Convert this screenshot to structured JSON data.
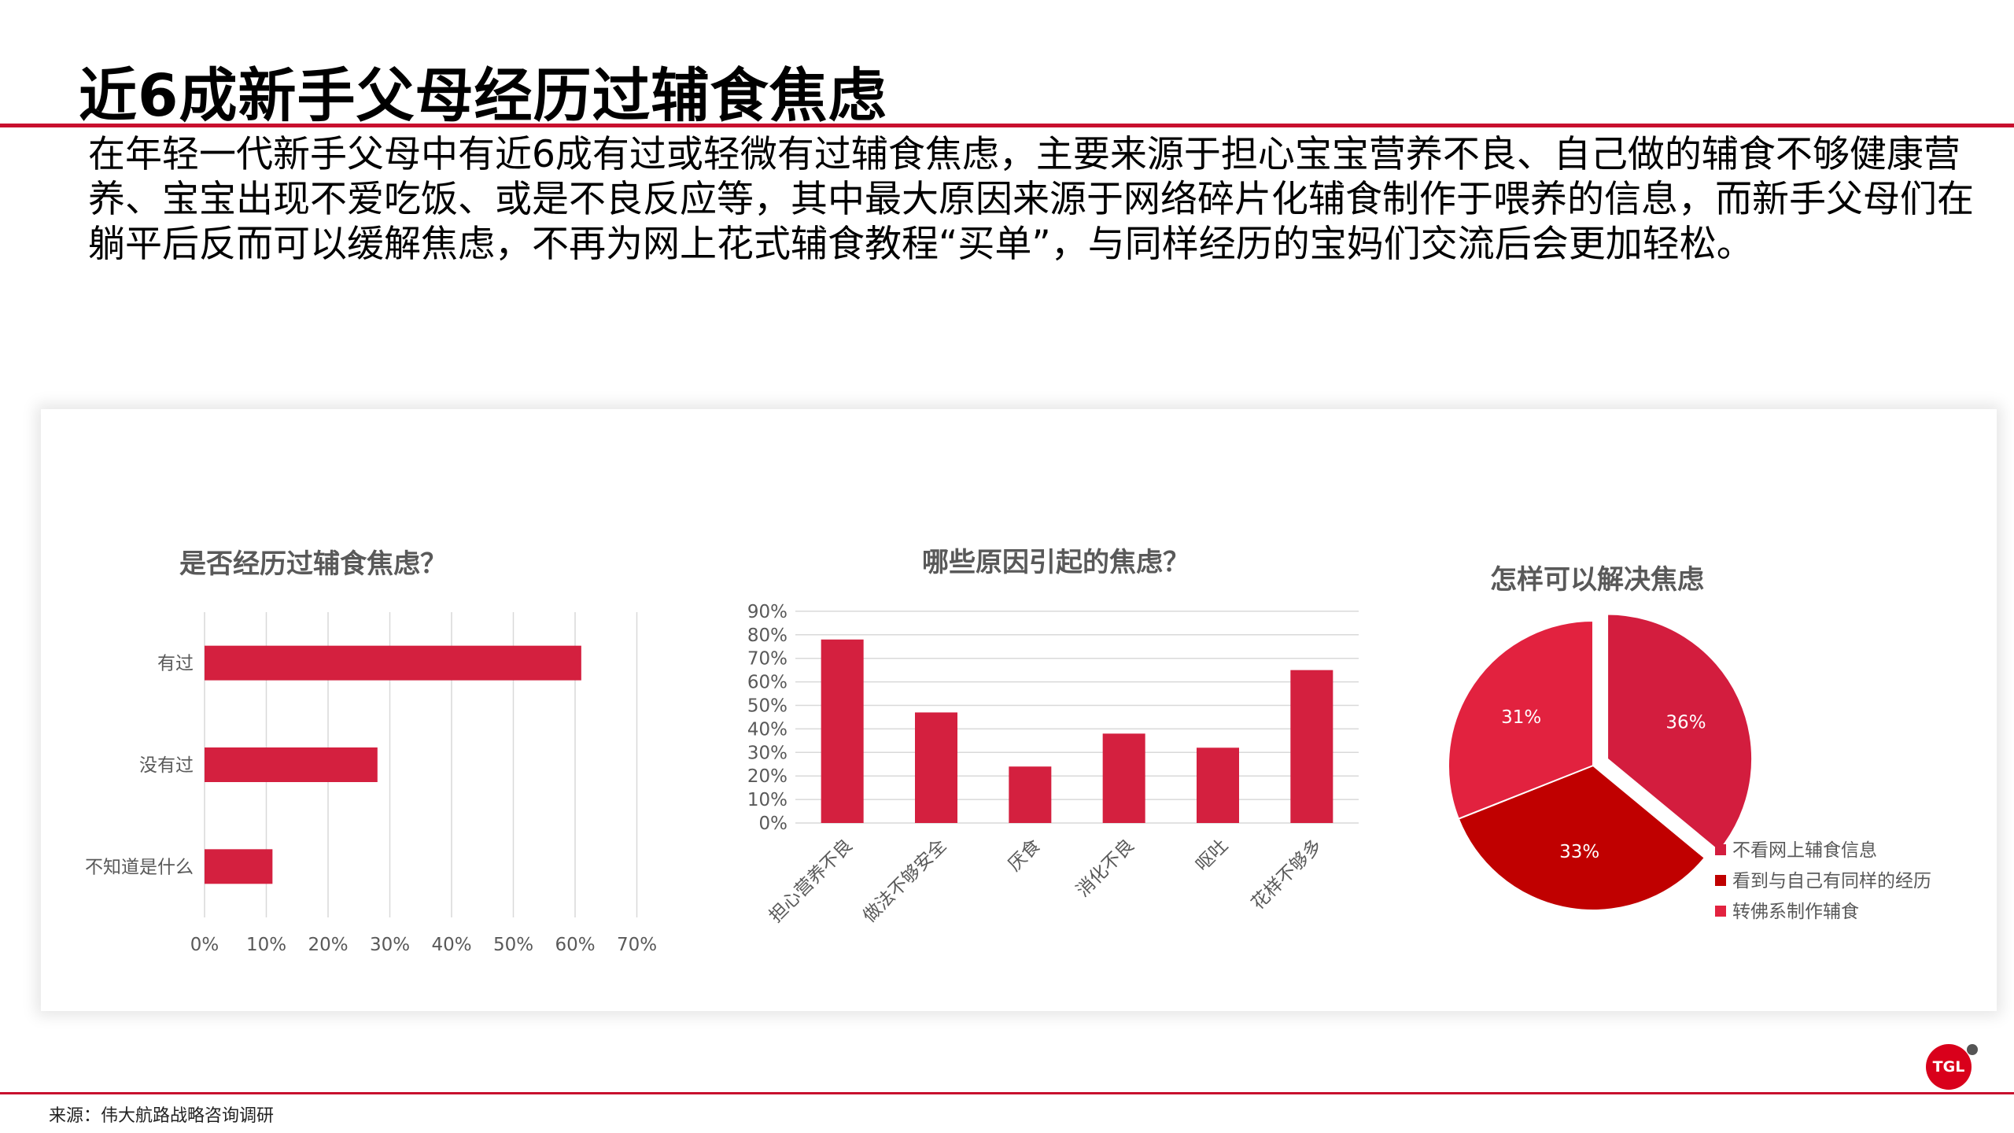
{
  "page": {
    "title": "近6成新手父母经历过辅食焦虑",
    "summary": "在年轻一代新手父母中有近6成有过或轻微有过辅食焦虑，主要来源于担心宝宝营养不良、自己做的辅食不够健康营养、宝宝出现不爱吃饭、或是不良反应等，其中最大原因来源于网络碎片化辅食制作于喂养的信息，而新手父母们在躺平后反而可以缓解焦虑，不再为网上花式辅食教程“买单”，与同样经历的宝妈们交流后会更加轻松。",
    "source": "来源：伟大航路战略咨询调研",
    "logo_text": "TGL"
  },
  "colors": {
    "bar": "#d4203f",
    "grid": "#d9d9d9",
    "axis_text": "#595959",
    "title_text": "#595959",
    "pie": [
      "#d31d3e",
      "#c00000",
      "#e2223f"
    ]
  },
  "chart_data": [
    {
      "type": "bar",
      "orientation": "horizontal",
      "title": "是否经历过辅食焦虑？",
      "categories": [
        "有过",
        "没有过",
        "不知道是什么"
      ],
      "values": [
        0.61,
        0.28,
        0.11
      ],
      "xlim": [
        0,
        0.7
      ],
      "x_ticks": [
        "0%",
        "10%",
        "20%",
        "30%",
        "40%",
        "50%",
        "60%",
        "70%"
      ],
      "grid": "vertical"
    },
    {
      "type": "bar",
      "orientation": "vertical",
      "title": "哪些原因引起的焦虑？",
      "categories": [
        "担心营养不良",
        "做法不够安全",
        "厌食",
        "消化不良",
        "呕吐",
        "花样不够多"
      ],
      "values": [
        0.78,
        0.47,
        0.24,
        0.38,
        0.32,
        0.65
      ],
      "ylim": [
        0,
        0.9
      ],
      "y_ticks": [
        "0%",
        "10%",
        "20%",
        "30%",
        "40%",
        "50%",
        "60%",
        "70%",
        "80%",
        "90%"
      ],
      "grid": "horizontal"
    },
    {
      "type": "pie",
      "title": "怎样可以解决焦虑",
      "categories": [
        "不看网上辅食信息",
        "看到与自己有同样的经历",
        "转佛系制作辅食"
      ],
      "values": [
        36,
        33,
        31
      ],
      "labels": [
        "36%",
        "33%",
        "31%"
      ],
      "exploded": "不看网上辅食信息",
      "legend": "bottom-right"
    }
  ]
}
